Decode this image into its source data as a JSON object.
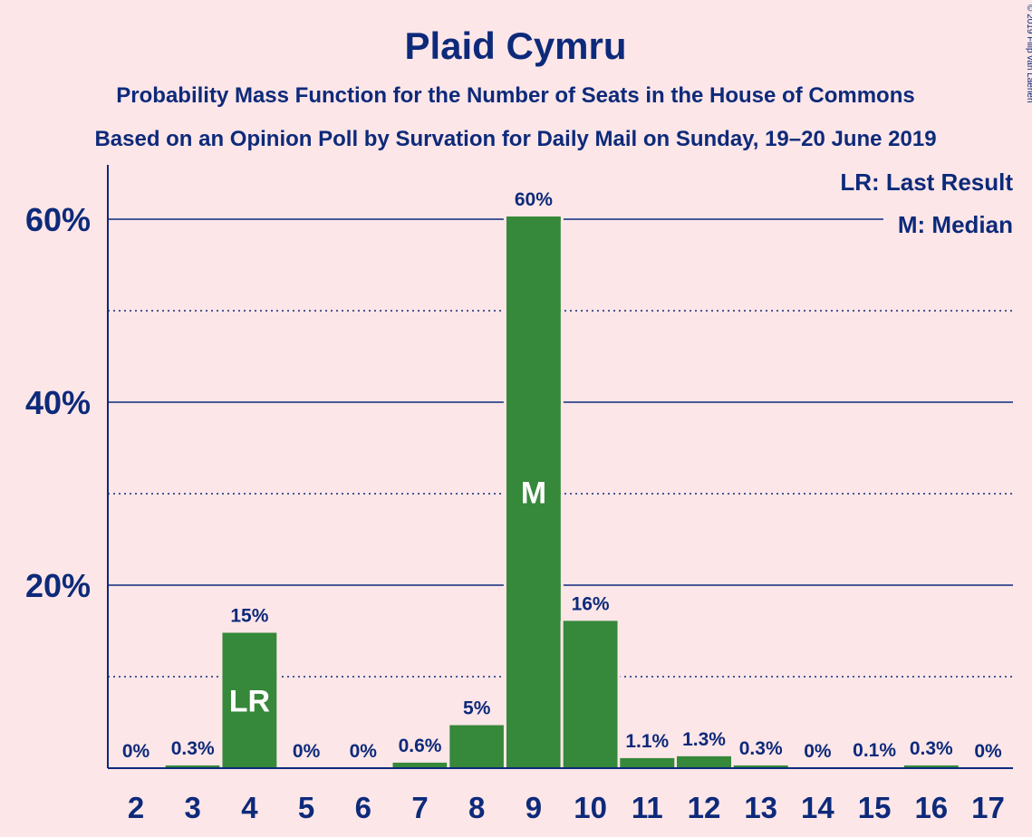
{
  "chart_data": {
    "type": "bar",
    "title": "Plaid Cymru",
    "subtitle_1": "Probability Mass Function for the Number of Seats in the House of Commons",
    "subtitle_2": "Based on an Opinion Poll by Survation for Daily Mail on Sunday, 19–20 June 2019",
    "categories": [
      "2",
      "3",
      "4",
      "5",
      "6",
      "7",
      "8",
      "9",
      "10",
      "11",
      "12",
      "13",
      "14",
      "15",
      "16",
      "17"
    ],
    "values": [
      0,
      0.3,
      14.8,
      0,
      0,
      0.6,
      4.7,
      60.3,
      16.1,
      1.1,
      1.3,
      0.3,
      0,
      0.1,
      0.3,
      0
    ],
    "value_labels": [
      "0%",
      "0.3%",
      "15%",
      "0%",
      "0%",
      "0.6%",
      "5%",
      "60%",
      "16%",
      "1.1%",
      "1.3%",
      "0.3%",
      "0%",
      "0.1%",
      "0.3%",
      "0%"
    ],
    "ylim": [
      0,
      66
    ],
    "yticks": [
      20,
      40,
      60
    ],
    "ytick_labels": [
      "20%",
      "40%",
      "60%"
    ],
    "minor_gridlines": [
      10,
      30,
      50
    ],
    "grid": true,
    "bar_color": "#36883A",
    "background_color": "#FDE6E8",
    "text_color": "#0D2A7A",
    "markers": [
      {
        "category": "4",
        "label": "LR"
      },
      {
        "category": "9",
        "label": "M"
      }
    ],
    "legend": {
      "placement": "top-right",
      "entries": [
        "LR: Last Result",
        "M: Median"
      ]
    },
    "copyright": "© 2019 Filip van Laenen"
  }
}
